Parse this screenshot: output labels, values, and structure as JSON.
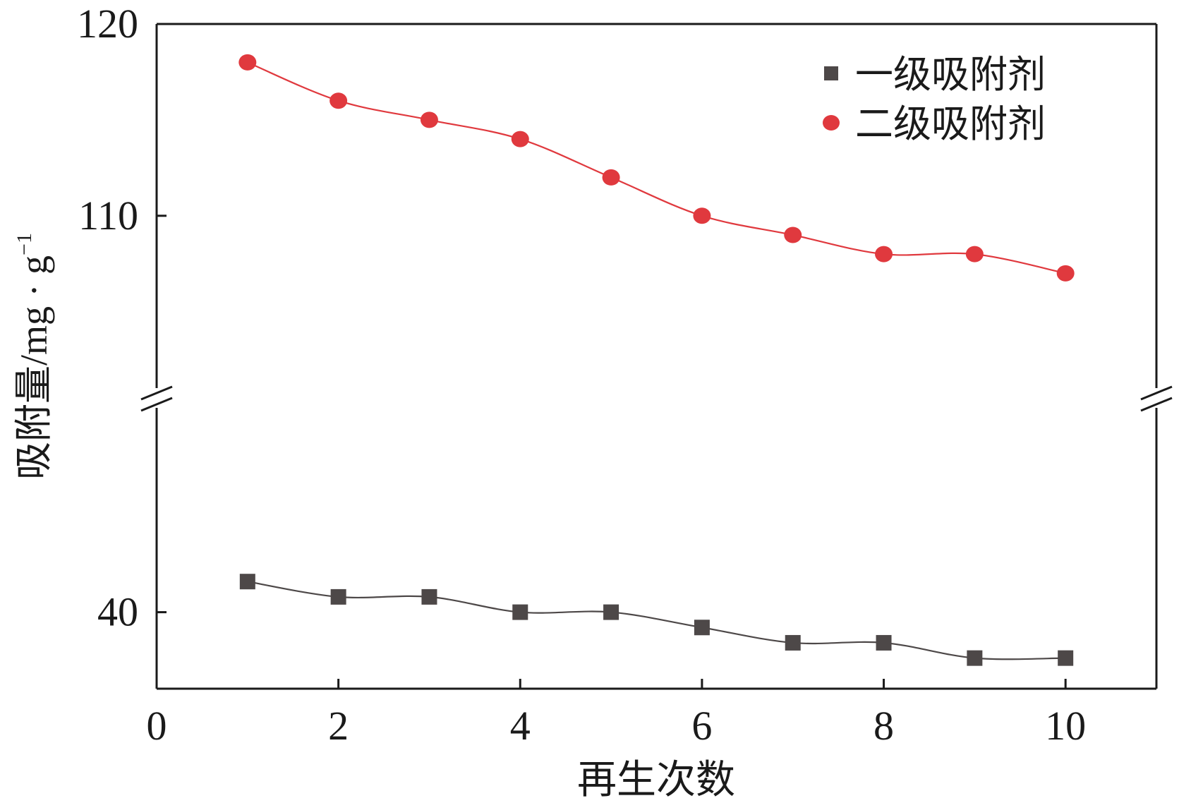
{
  "chart_data": {
    "type": "line",
    "xlabel": "再生次数",
    "ylabel": "吸附量/mg · g",
    "ylabel_superscript": "−1",
    "xlim": [
      0,
      11
    ],
    "x_ticks": [
      "0",
      "2",
      "4",
      "6",
      "8",
      "10"
    ],
    "x_tick_values": [
      0,
      2,
      4,
      6,
      8,
      10
    ],
    "y_axis_break": true,
    "ylim_upper_segment": [
      100.5,
      120
    ],
    "ylim_lower_segment": [
      35,
      54
    ],
    "y_ticks": [
      "40",
      "110",
      "120"
    ],
    "y_tick_values": [
      40,
      110,
      120
    ],
    "x": [
      1,
      2,
      3,
      4,
      5,
      6,
      7,
      8,
      9,
      10
    ],
    "series": [
      {
        "name": "一级吸附剂",
        "marker": "square",
        "color": "#4d4848",
        "values": [
          42,
          41,
          41,
          40,
          40,
          39,
          38,
          38,
          37,
          37
        ]
      },
      {
        "name": "二级吸附剂",
        "marker": "circle",
        "color": "#e0393e",
        "values": [
          118,
          116,
          115,
          114,
          112,
          110,
          109,
          108,
          108,
          107
        ]
      }
    ],
    "legend_position": "top-right",
    "grid": false
  }
}
